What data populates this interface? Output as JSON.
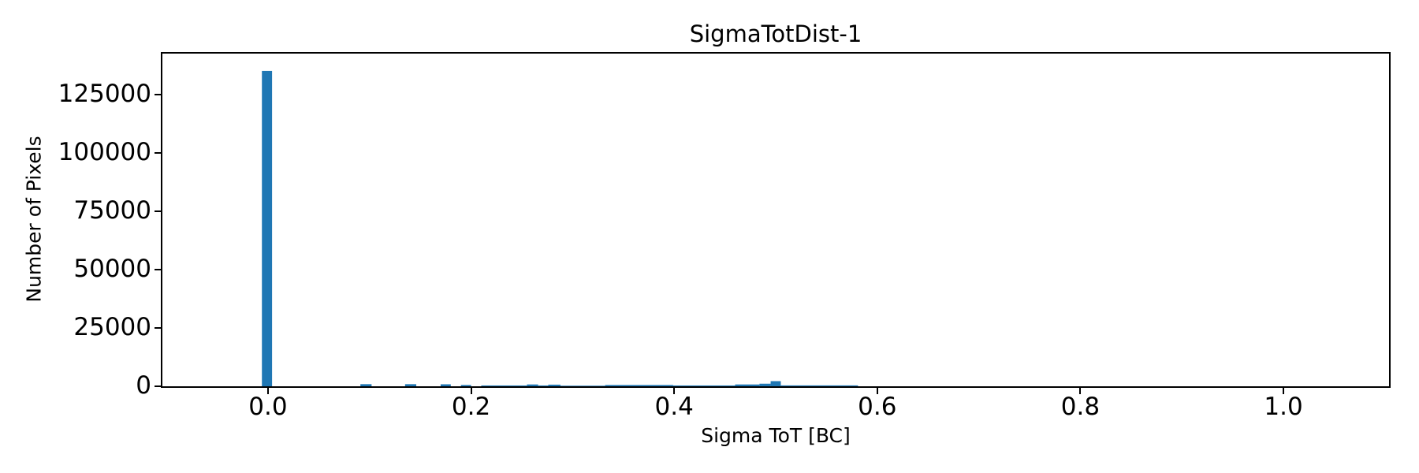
{
  "colors": {
    "bar": "#1f77b4",
    "axis": "#000000",
    "text": "#000000",
    "background": "#ffffff"
  },
  "chart_data": {
    "type": "bar",
    "subtype": "histogram",
    "title": "SigmaTotDist-1",
    "xlabel": "Sigma ToT [BC]",
    "ylabel": "Number of Pixels",
    "xlim": [
      -0.104,
      1.104
    ],
    "ylim": [
      0,
      142400
    ],
    "grid": false,
    "legend": "none",
    "bar_color": "#1f77b4",
    "bin_width": 0.01,
    "xticks": {
      "values": [
        0.0,
        0.2,
        0.4,
        0.6,
        0.8,
        1.0
      ],
      "labels": [
        "0.0",
        "0.2",
        "0.4",
        "0.6",
        "0.8",
        "1.0"
      ]
    },
    "yticks": {
      "values": [
        0,
        25000,
        50000,
        75000,
        100000,
        125000
      ],
      "labels": [
        "0",
        "25000",
        "50000",
        "75000",
        "100000",
        "125000"
      ]
    },
    "segments": [
      {
        "x0": -0.006,
        "x1": 0.004,
        "count": 135000
      },
      {
        "x0": 0.091,
        "x1": 0.102,
        "count": 900
      },
      {
        "x0": 0.135,
        "x1": 0.146,
        "count": 900
      },
      {
        "x0": 0.17,
        "x1": 0.18,
        "count": 850
      },
      {
        "x0": 0.19,
        "x1": 0.2,
        "count": 550
      },
      {
        "x0": 0.21,
        "x1": 0.255,
        "count": 350
      },
      {
        "x0": 0.255,
        "x1": 0.266,
        "count": 780
      },
      {
        "x0": 0.266,
        "x1": 0.276,
        "count": 350
      },
      {
        "x0": 0.276,
        "x1": 0.288,
        "count": 700
      },
      {
        "x0": 0.288,
        "x1": 0.332,
        "count": 250
      },
      {
        "x0": 0.332,
        "x1": 0.399,
        "count": 550
      },
      {
        "x0": 0.399,
        "x1": 0.46,
        "count": 350
      },
      {
        "x0": 0.46,
        "x1": 0.484,
        "count": 780
      },
      {
        "x0": 0.484,
        "x1": 0.495,
        "count": 1100
      },
      {
        "x0": 0.495,
        "x1": 0.505,
        "count": 2200
      },
      {
        "x0": 0.505,
        "x1": 0.581,
        "count": 380
      }
    ]
  }
}
